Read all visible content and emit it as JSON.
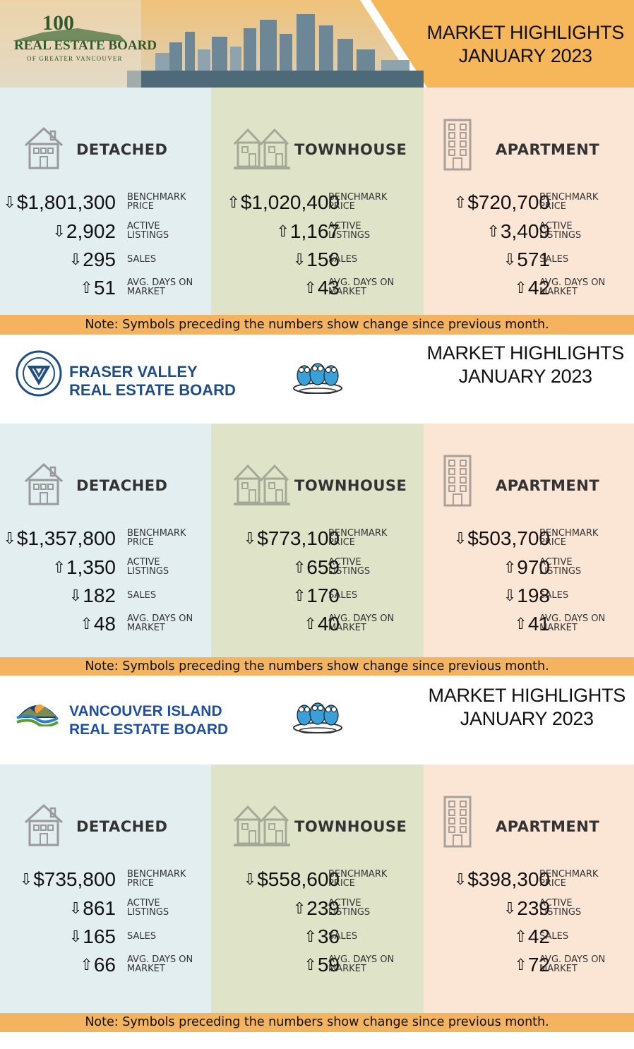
{
  "boards": [
    {
      "id": "rebgv",
      "logo": {
        "line1": "REAL ESTATE BOARD",
        "line2": "OF GREATER VANCOUVER",
        "badge": "100"
      },
      "title": {
        "line1": "MARKET HIGHLIGHTS",
        "line2": "JANUARY 2023"
      },
      "types": [
        {
          "name": "DETACHED",
          "stats": [
            {
              "dir": "down",
              "value": "$1,801,300",
              "label1": "BENCHMARK",
              "label2": "PRICE"
            },
            {
              "dir": "down",
              "value": "2,902",
              "label1": "ACTIVE",
              "label2": "LISTINGS"
            },
            {
              "dir": "down",
              "value": "295",
              "label1": "SALES",
              "label2": ""
            },
            {
              "dir": "up",
              "value": "51",
              "label1": "AVG. DAYS ON",
              "label2": "MARKET"
            }
          ]
        },
        {
          "name": "TOWNHOUSE",
          "stats": [
            {
              "dir": "up",
              "value": "$1,020,400",
              "label1": "BENCHMARK",
              "label2": "PRICE"
            },
            {
              "dir": "up",
              "value": "1,167",
              "label1": "ACTIVE",
              "label2": "LISTINGS"
            },
            {
              "dir": "down",
              "value": "156",
              "label1": "SALES",
              "label2": ""
            },
            {
              "dir": "up",
              "value": "43",
              "label1": "AVG. DAYS ON",
              "label2": "MARKET"
            }
          ]
        },
        {
          "name": "APARTMENT",
          "stats": [
            {
              "dir": "up",
              "value": "$720,700",
              "label1": "BENCHMARK",
              "label2": "PRICE"
            },
            {
              "dir": "up",
              "value": "3,409",
              "label1": "ACTIVE",
              "label2": "LISTINGS"
            },
            {
              "dir": "down",
              "value": "571",
              "label1": "SALES",
              "label2": ""
            },
            {
              "dir": "up",
              "value": "42",
              "label1": "AVG. DAYS ON",
              "label2": "MARKET"
            }
          ]
        }
      ],
      "note": "Note: Symbols preceding the numbers show change since previous month."
    },
    {
      "id": "fvreb",
      "logo": {
        "line1": "FRASER VALLEY",
        "line2": "REAL ESTATE BOARD",
        "ring": "FRASER VALLEY REAL ESTATE BOARD"
      },
      "title": {
        "line1": "MARKET HIGHLIGHTS",
        "line2": "JANUARY 2023"
      },
      "types": [
        {
          "name": "DETACHED",
          "stats": [
            {
              "dir": "down",
              "value": "$1,357,800",
              "label1": "BENCHMARK",
              "label2": "PRICE"
            },
            {
              "dir": "up",
              "value": "1,350",
              "label1": "ACTIVE",
              "label2": "LISTINGS"
            },
            {
              "dir": "down",
              "value": "182",
              "label1": "SALES",
              "label2": ""
            },
            {
              "dir": "up",
              "value": "48",
              "label1": "AVG. DAYS ON",
              "label2": "MARKET"
            }
          ]
        },
        {
          "name": "TOWNHOUSE",
          "stats": [
            {
              "dir": "down",
              "value": "$773,100",
              "label1": "BENCHMARK",
              "label2": "PRICE"
            },
            {
              "dir": "up",
              "value": "659",
              "label1": "ACTIVE",
              "label2": "LISTINGS"
            },
            {
              "dir": "up",
              "value": "170",
              "label1": "SALES",
              "label2": ""
            },
            {
              "dir": "up",
              "value": "40",
              "label1": "AVG. DAYS ON",
              "label2": "MARKET"
            }
          ]
        },
        {
          "name": "APARTMENT",
          "stats": [
            {
              "dir": "down",
              "value": "$503,700",
              "label1": "BENCHMARK",
              "label2": "PRICE"
            },
            {
              "dir": "up",
              "value": "970",
              "label1": "ACTIVE",
              "label2": "LISTINGS"
            },
            {
              "dir": "down",
              "value": "198",
              "label1": "SALES",
              "label2": ""
            },
            {
              "dir": "up",
              "value": "41",
              "label1": "AVG. DAYS ON",
              "label2": "MARKET"
            }
          ]
        }
      ],
      "note": "Note: Symbols preceding the numbers show change since previous month."
    },
    {
      "id": "vireb",
      "logo": {
        "line1": "VANCOUVER ISLAND",
        "line2": "REAL ESTATE BOARD"
      },
      "title": {
        "line1": "MARKET HIGHLIGHTS",
        "line2": "JANUARY 2023"
      },
      "types": [
        {
          "name": "DETACHED",
          "stats": [
            {
              "dir": "down",
              "value": "$735,800",
              "label1": "BENCHMARK",
              "label2": "PRICE"
            },
            {
              "dir": "down",
              "value": "861",
              "label1": "ACTIVE",
              "label2": "LISTINGS"
            },
            {
              "dir": "down",
              "value": "165",
              "label1": "SALES",
              "label2": ""
            },
            {
              "dir": "up",
              "value": "66",
              "label1": "AVG. DAYS ON",
              "label2": "MARKET"
            }
          ]
        },
        {
          "name": "TOWNHOUSE",
          "stats": [
            {
              "dir": "down",
              "value": "$558,600",
              "label1": "BENCHMARK",
              "label2": "PRICE"
            },
            {
              "dir": "up",
              "value": "239",
              "label1": "ACTIVE",
              "label2": "LISTINGS"
            },
            {
              "dir": "up",
              "value": "36",
              "label1": "SALES",
              "label2": ""
            },
            {
              "dir": "up",
              "value": "59",
              "label1": "AVG. DAYS ON",
              "label2": "MARKET"
            }
          ]
        },
        {
          "name": "APARTMENT",
          "stats": [
            {
              "dir": "down",
              "value": "$398,300",
              "label1": "BENCHMARK",
              "label2": "PRICE"
            },
            {
              "dir": "down",
              "value": "239",
              "label1": "ACTIVE",
              "label2": "LISTINGS"
            },
            {
              "dir": "up",
              "value": "42",
              "label1": "SALES",
              "label2": ""
            },
            {
              "dir": "up",
              "value": "72",
              "label1": "AVG. DAYS ON",
              "label2": "MARKET"
            }
          ]
        }
      ],
      "note": "Note: Symbols preceding the numbers show change since previous month."
    }
  ],
  "colors": {
    "detached_bg": "#e3eef0",
    "townhouse_bg": "#dfe4c8",
    "apartment_bg": "#fbe6d6",
    "note_bg": "#f4b35e",
    "header_accent": "#f6b65a",
    "fv_blue": "#1f4e86",
    "vi_blue": "#1e4fa0"
  },
  "icons": {
    "down": "⇩",
    "up": "⇧"
  }
}
